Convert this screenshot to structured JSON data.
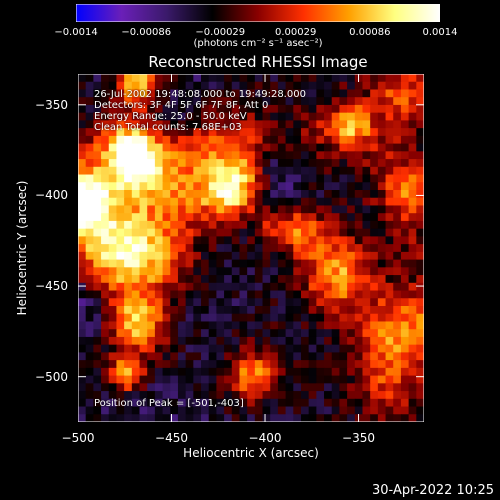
{
  "chart_data": {
    "type": "heatmap",
    "title": "Reconstructed RHESSI Image",
    "xlabel": "Heliocentric X (arcsec)",
    "ylabel": "Heliocentric Y (arcsec)",
    "xlim": [
      -500,
      -315
    ],
    "ylim": [
      -525,
      -333
    ],
    "x_ticks": [
      "−500",
      "−450",
      "−400",
      "−350"
    ],
    "x_tick_values": [
      -500,
      -450,
      -400,
      -350
    ],
    "y_ticks": [
      "−350",
      "−400",
      "−450",
      "−500"
    ],
    "y_tick_values": [
      -350,
      -400,
      -450,
      -500
    ],
    "colorbar": {
      "units_label": "(photons cm⁻² s⁻¹ asec⁻²)",
      "range": [
        -0.0014,
        0.0014
      ],
      "tick_labels": [
        "−0.0014",
        "−0.00086",
        "−0.00029",
        "0.00029",
        "0.00086",
        "0.0014"
      ],
      "tick_values": [
        -0.0014,
        -0.00086,
        -0.00029,
        0.00029,
        0.00086,
        0.0014
      ],
      "colors": [
        "#0000ff",
        "#6a1fb8",
        "#3a1a6a",
        "#000000",
        "#8a0000",
        "#ff3000",
        "#ffa000",
        "#ffff80",
        "#ffffff"
      ]
    },
    "annotations": [
      "26-Jul-2002 19:48:08.000 to 19:49:28.000",
      "Detectors: 3F 4F 5F 6F 7F 8F, Att 0",
      "Energy Range: 25.0 - 50.0 keV",
      "Clean    Total counts: 7.68E+03"
    ],
    "peak_label": "Position of Peak = [-501,-403]",
    "peak_position": [
      -501,
      -403
    ]
  },
  "footer": {
    "timestamp": "30-Apr-2022 10:25"
  }
}
